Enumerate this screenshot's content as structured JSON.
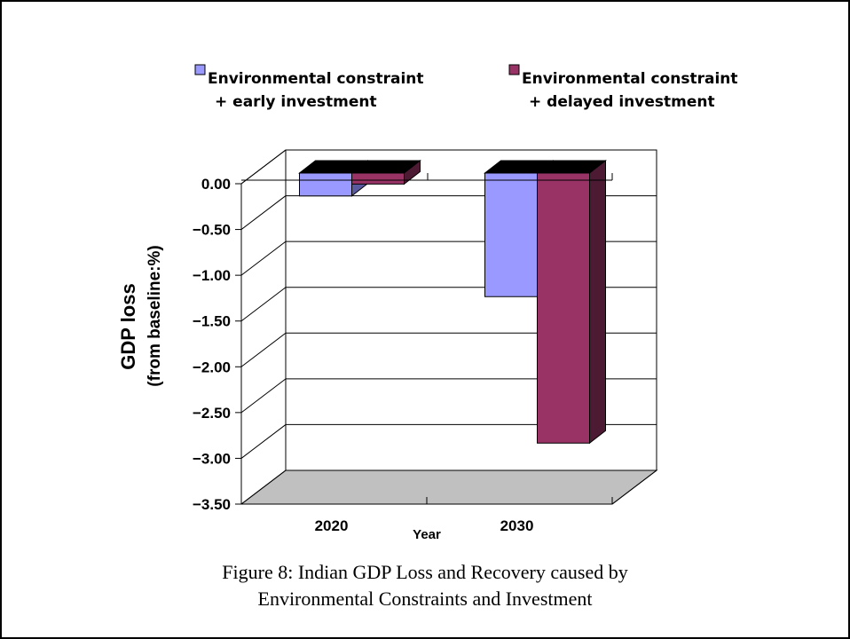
{
  "chart_data": {
    "type": "bar",
    "categories": [
      "2020",
      "2030"
    ],
    "series": [
      {
        "name": "Environmental constraint + early investment",
        "name_lines": [
          "Environmental constraint",
          "+ early investment"
        ],
        "color": "#9999ff",
        "side_color": "#5a5aa0",
        "values": [
          -0.25,
          -1.35
        ]
      },
      {
        "name": "Environmental constraint + delayed investment",
        "name_lines": [
          "Environmental constraint",
          "+ delayed investment"
        ],
        "color": "#993366",
        "side_color": "#4d1a33",
        "values": [
          -0.12,
          -2.95
        ]
      }
    ],
    "title": "",
    "xlabel": "Year",
    "ylabel_lines": [
      "GDP loss",
      "(from baseline:%)"
    ],
    "ylim": [
      -3.5,
      0
    ],
    "yticks": [
      0,
      -0.5,
      -1,
      -1.5,
      -2,
      -2.5,
      -3,
      -3.5
    ],
    "ytick_labels": [
      "0.00",
      "−0.50",
      "−1.00",
      "−1.50",
      "−2.00",
      "−2.50",
      "−3.00",
      "−3.50"
    ],
    "grid": true,
    "legend": "top",
    "floor_color": "#c0c0c0",
    "top_face_color": "#000000"
  },
  "caption": {
    "line1": "Figure 8:  Indian GDP Loss and Recovery caused by",
    "line2": "Environmental Constraints and Investment"
  }
}
